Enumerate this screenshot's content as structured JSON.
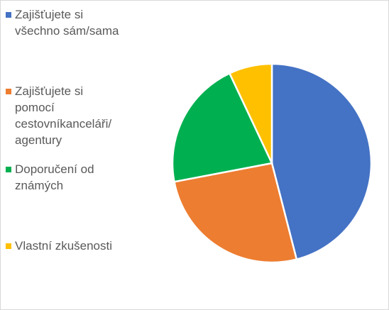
{
  "chart_data": {
    "type": "pie",
    "categories": [
      "Zajišťujete si všechno sám/sama",
      "Zajišťujete si pomocí cestovníkanceláři/ agentury",
      "Doporučení od známých",
      "Vlastní zkušenosti"
    ],
    "values": [
      46,
      26,
      21,
      7
    ],
    "colors": [
      "#4472c4",
      "#ed7d31",
      "#00b050",
      "#ffc000"
    ],
    "legend": "left"
  }
}
